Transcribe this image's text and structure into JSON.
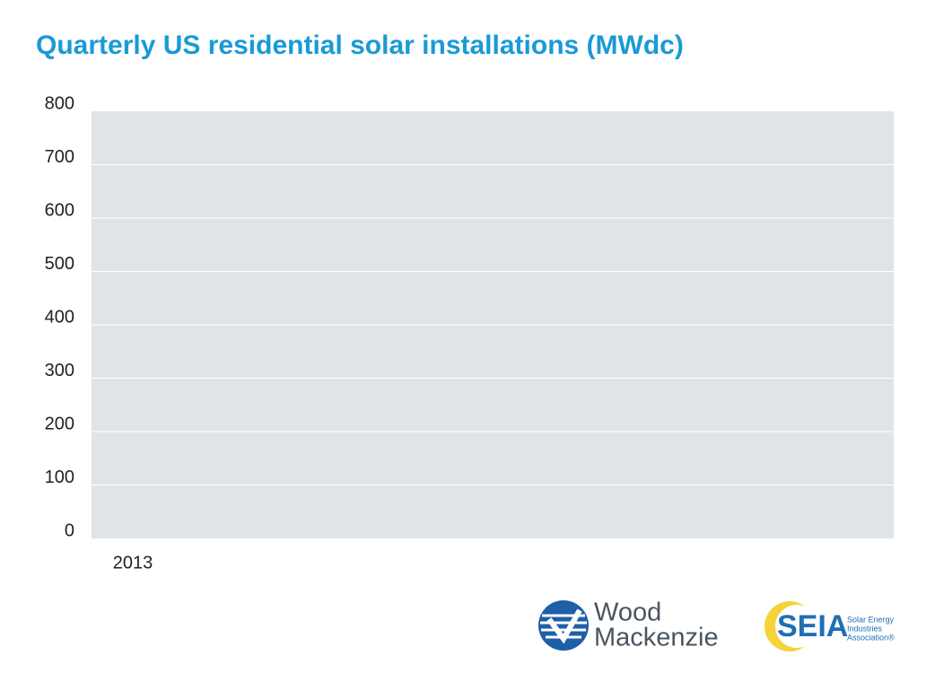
{
  "chart_data": {
    "type": "bar",
    "title": "Quarterly US residential solar installations (MWdc)",
    "categories": [
      "2013"
    ],
    "values": [
      null
    ],
    "color": "#1a9ad6",
    "ylim": [
      0,
      800
    ],
    "yticks": [
      0,
      100,
      200,
      300,
      400,
      500,
      600,
      700,
      800
    ],
    "grid": true
  },
  "logos": {
    "wood_mackenzie": [
      "Wood",
      "Mackenzie"
    ],
    "seia": {
      "name": "SEIA",
      "tagline": [
        "Solar Energy",
        "Industries",
        "Association®"
      ]
    }
  }
}
